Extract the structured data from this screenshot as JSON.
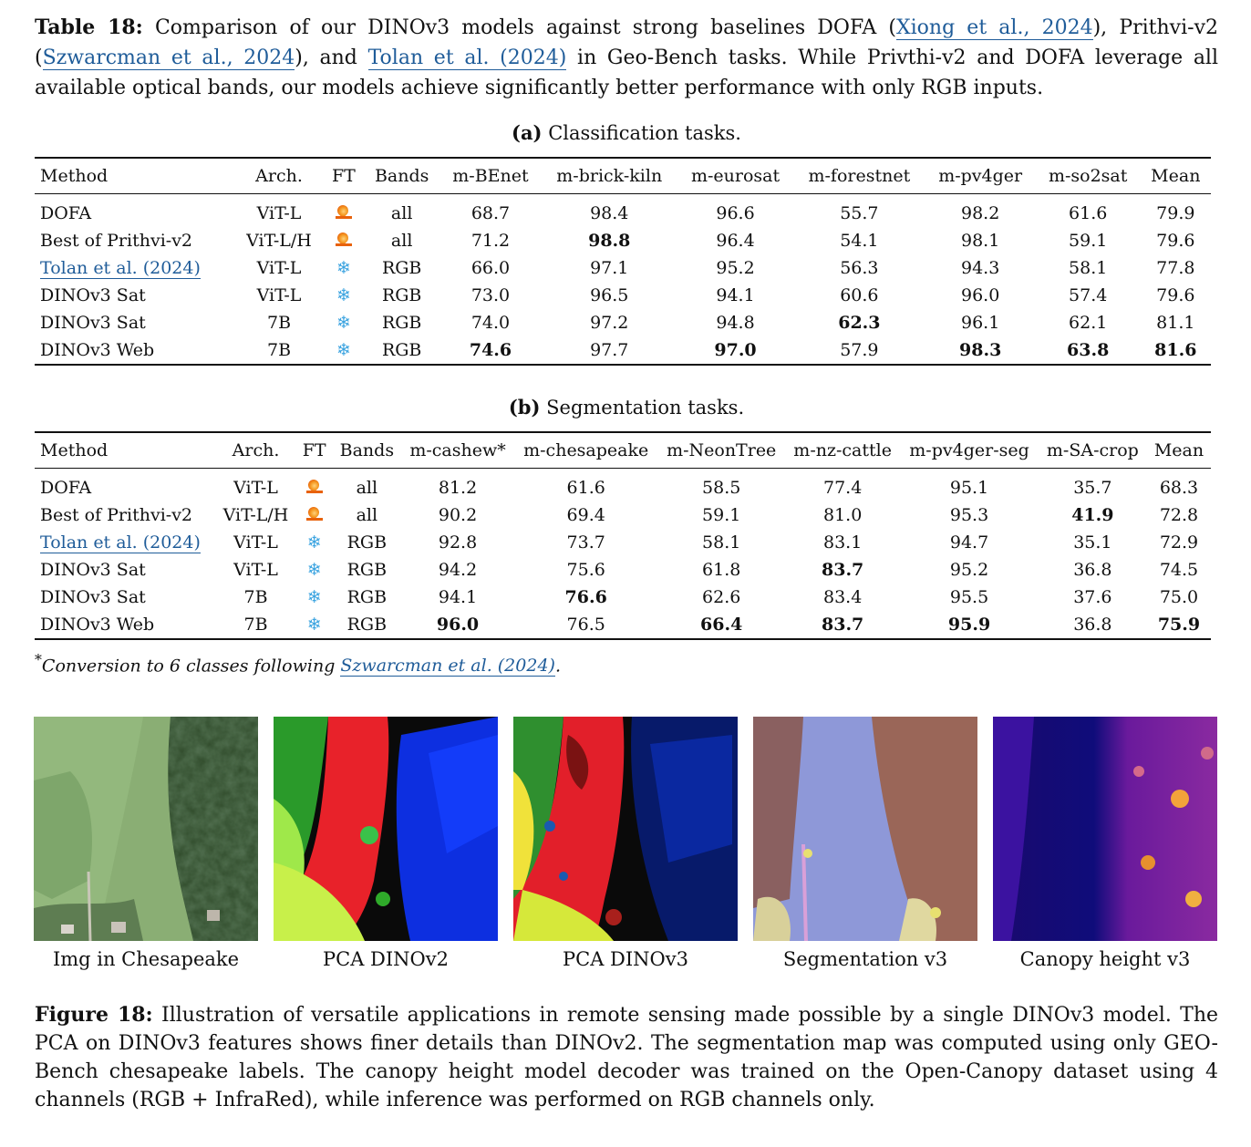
{
  "table_caption": {
    "label": "Table 18:",
    "part1": " Comparison of our DINOv3 models against strong baselines DOFA (",
    "cite1": "Xiong et al., 2024",
    "part2": "), Prithvi-v2 (",
    "cite2": "Szwarcman et al., 2024",
    "part3": "), and ",
    "cite3": "Tolan et al. (2024)",
    "part4": " in Geo-Bench tasks. While Privthi-v2 and DOFA leverage all available optical bands, our models achieve significantly better performance with only RGB inputs."
  },
  "classification": {
    "label": "(a)",
    "title": "Classification tasks.",
    "headers": [
      "Method",
      "Arch.",
      "FT",
      "Bands",
      "m-BEnet",
      "m-brick-kiln",
      "m-eurosat",
      "m-forestnet",
      "m-pv4ger",
      "m-so2sat",
      "Mean"
    ],
    "rows": [
      {
        "method": "DOFA",
        "arch": "ViT-L",
        "ft": "fire",
        "bands": "all",
        "values": [
          "68.7",
          "98.4",
          "96.6",
          "55.7",
          "98.2",
          "61.6",
          "79.9"
        ],
        "bold": []
      },
      {
        "method": "Best of Prithvi-v2",
        "arch": "ViT-L/H",
        "ft": "fire",
        "bands": "all",
        "values": [
          "71.2",
          "98.8",
          "96.4",
          "54.1",
          "98.1",
          "59.1",
          "79.6"
        ],
        "bold": [
          1
        ]
      },
      {
        "method": "Tolan et al. (2024)",
        "arch": "ViT-L",
        "ft": "snowflake",
        "bands": "RGB",
        "values": [
          "66.0",
          "97.1",
          "95.2",
          "56.3",
          "94.3",
          "58.1",
          "77.8"
        ],
        "bold": [],
        "cite": true
      },
      {
        "method": "DINOv3 Sat",
        "arch": "ViT-L",
        "ft": "snowflake",
        "bands": "RGB",
        "values": [
          "73.0",
          "96.5",
          "94.1",
          "60.6",
          "96.0",
          "57.4",
          "79.6"
        ],
        "bold": []
      },
      {
        "method": "DINOv3 Sat",
        "arch": "7B",
        "ft": "snowflake",
        "bands": "RGB",
        "values": [
          "74.0",
          "97.2",
          "94.8",
          "62.3",
          "96.1",
          "62.1",
          "81.1"
        ],
        "bold": [
          3
        ]
      },
      {
        "method": "DINOv3 Web",
        "arch": "7B",
        "ft": "snowflake",
        "bands": "RGB",
        "values": [
          "74.6",
          "97.7",
          "97.0",
          "57.9",
          "98.3",
          "63.8",
          "81.6"
        ],
        "bold": [
          0,
          2,
          4,
          5,
          6
        ]
      }
    ]
  },
  "segmentation": {
    "label": "(b)",
    "title": "Segmentation tasks.",
    "headers": [
      "Method",
      "Arch.",
      "FT",
      "Bands",
      "m-cashew*",
      "m-chesapeake",
      "m-NeonTree",
      "m-nz-cattle",
      "m-pv4ger-seg",
      "m-SA-crop",
      "Mean"
    ],
    "rows": [
      {
        "method": "DOFA",
        "arch": "ViT-L",
        "ft": "fire",
        "bands": "all",
        "values": [
          "81.2",
          "61.6",
          "58.5",
          "77.4",
          "95.1",
          "35.7",
          "68.3"
        ],
        "bold": []
      },
      {
        "method": "Best of Prithvi-v2",
        "arch": "ViT-L/H",
        "ft": "fire",
        "bands": "all",
        "values": [
          "90.2",
          "69.4",
          "59.1",
          "81.0",
          "95.3",
          "41.9",
          "72.8"
        ],
        "bold": [
          5
        ]
      },
      {
        "method": "Tolan et al. (2024)",
        "arch": "ViT-L",
        "ft": "snowflake",
        "bands": "RGB",
        "values": [
          "92.8",
          "73.7",
          "58.1",
          "83.1",
          "94.7",
          "35.1",
          "72.9"
        ],
        "bold": [],
        "cite": true
      },
      {
        "method": "DINOv3 Sat",
        "arch": "ViT-L",
        "ft": "snowflake",
        "bands": "RGB",
        "values": [
          "94.2",
          "75.6",
          "61.8",
          "83.7",
          "95.2",
          "36.8",
          "74.5"
        ],
        "bold": [
          3
        ]
      },
      {
        "method": "DINOv3 Sat",
        "arch": "7B",
        "ft": "snowflake",
        "bands": "RGB",
        "values": [
          "94.1",
          "76.6",
          "62.6",
          "83.4",
          "95.5",
          "37.6",
          "75.0"
        ],
        "bold": [
          1
        ]
      },
      {
        "method": "DINOv3 Web",
        "arch": "7B",
        "ft": "snowflake",
        "bands": "RGB",
        "values": [
          "96.0",
          "76.5",
          "66.4",
          "83.7",
          "95.9",
          "36.8",
          "75.9"
        ],
        "bold": [
          0,
          2,
          3,
          4,
          6
        ]
      }
    ],
    "footnote_mark": "*",
    "footnote_text": "Conversion to 6 classes following ",
    "footnote_cite": "Szwarcman et al. (2024)",
    "footnote_end": "."
  },
  "figure_panels": [
    {
      "label": "Img in Chesapeake",
      "kind": "aerial-photo"
    },
    {
      "label": "PCA DINOv2",
      "kind": "pca-map-coarse"
    },
    {
      "label": "PCA DINOv3",
      "kind": "pca-map-fine"
    },
    {
      "label": "Segmentation v3",
      "kind": "segmentation-overlay"
    },
    {
      "label": "Canopy height v3",
      "kind": "canopy-heatmap"
    }
  ],
  "figure_caption": {
    "label": "Figure 18:",
    "text": " Illustration of versatile applications in remote sensing made possible by a single DINOv3 model. The PCA on DINOv3 features shows finer details than DINOv2. The segmentation map was computed using only GEO-Bench chesapeake labels. The canopy height model decoder was trained on the Open-Canopy dataset using 4 channels (RGB + InfraRed), while inference was performed on RGB channels only."
  },
  "colors": {
    "link": "#1f5c99",
    "fire_icon": "#e8620c",
    "snowflake_icon": "#3aa3e0"
  }
}
